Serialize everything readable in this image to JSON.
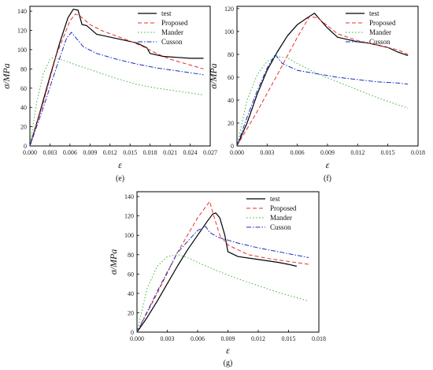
{
  "chart_data": [
    {
      "type": "line",
      "panel_label": "(e)",
      "xlabel": "ε",
      "ylabel": "σ/MPa",
      "xlim": [
        0,
        0.027
      ],
      "ylim": [
        0,
        145
      ],
      "xticks": [
        "0.000",
        "0.003",
        "0.006",
        "0.009",
        "0.012",
        "0.015",
        "0.018",
        "0.021",
        "0.024",
        "0.027"
      ],
      "yticks": [
        "0",
        "20",
        "40",
        "60",
        "80",
        "100",
        "120",
        "140"
      ],
      "legend_position": "top-right",
      "series": [
        {
          "name": "test",
          "color": "#000000",
          "dash": "solid",
          "x": [
            0,
            0.0015,
            0.003,
            0.0045,
            0.0057,
            0.0065,
            0.0072,
            0.0078,
            0.0085,
            0.01,
            0.012,
            0.014,
            0.016,
            0.0175,
            0.018,
            0.02,
            0.022,
            0.024,
            0.026
          ],
          "y": [
            0,
            35,
            72,
            108,
            133,
            142,
            141,
            126,
            125,
            116,
            113,
            110,
            107,
            102,
            96,
            93,
            92,
            91,
            91
          ]
        },
        {
          "name": "Proposed",
          "color": "#e8302a",
          "dash": "dashed",
          "x": [
            0,
            0.002,
            0.004,
            0.006,
            0.0068,
            0.0075,
            0.009,
            0.011,
            0.013,
            0.015,
            0.017,
            0.019,
            0.021,
            0.023,
            0.026
          ],
          "y": [
            0,
            45,
            95,
            130,
            137,
            135,
            126,
            119,
            114,
            109,
            103,
            96,
            90,
            86,
            80
          ]
        },
        {
          "name": "Mander",
          "color": "#3cb43c",
          "dash": "dotted",
          "x": [
            0,
            0.001,
            0.002,
            0.003,
            0.0035,
            0.005,
            0.007,
            0.01,
            0.013,
            0.016,
            0.019,
            0.022,
            0.026
          ],
          "y": [
            0,
            45,
            75,
            90,
            92,
            89,
            84,
            77,
            70,
            64,
            60,
            57,
            53
          ]
        },
        {
          "name": "Cusson",
          "color": "#1a2fbf",
          "dash": "dashdot",
          "x": [
            0,
            0.002,
            0.004,
            0.0055,
            0.0062,
            0.0068,
            0.008,
            0.01,
            0.013,
            0.016,
            0.019,
            0.022,
            0.026
          ],
          "y": [
            0,
            40,
            82,
            112,
            118,
            113,
            103,
            96,
            90,
            85,
            81,
            78,
            74
          ]
        }
      ]
    },
    {
      "type": "line",
      "panel_label": "(f)",
      "xlabel": "ε",
      "ylabel": "σ/MPa",
      "xlim": [
        0,
        0.018
      ],
      "ylim": [
        0,
        122
      ],
      "xticks": [
        "0.000",
        "0.003",
        "0.006",
        "0.009",
        "0.012",
        "0.015",
        "0.018"
      ],
      "yticks": [
        "0",
        "20",
        "40",
        "60",
        "80",
        "100",
        "120"
      ],
      "legend_position": "top-right",
      "series": [
        {
          "name": "test",
          "color": "#000000",
          "dash": "solid",
          "x": [
            0,
            0.001,
            0.002,
            0.003,
            0.004,
            0.005,
            0.006,
            0.007,
            0.0077,
            0.008,
            0.009,
            0.01,
            0.011,
            0.012,
            0.013,
            0.014,
            0.015,
            0.016,
            0.017
          ],
          "y": [
            0,
            20,
            45,
            66,
            82,
            96,
            106,
            112,
            116,
            113,
            103,
            95,
            93,
            91,
            90,
            88,
            86,
            82,
            79
          ]
        },
        {
          "name": "Proposed",
          "color": "#e8302a",
          "dash": "dashed",
          "x": [
            0,
            0.002,
            0.004,
            0.006,
            0.0072,
            0.008,
            0.009,
            0.01,
            0.012,
            0.014,
            0.016,
            0.017
          ],
          "y": [
            0,
            30,
            62,
            95,
            113,
            112,
            105,
            98,
            92,
            88,
            84,
            80
          ]
        },
        {
          "name": "Mander",
          "color": "#3cb43c",
          "dash": "dotted",
          "x": [
            0,
            0.001,
            0.002,
            0.003,
            0.004,
            0.005,
            0.006,
            0.008,
            0.01,
            0.012,
            0.014,
            0.016,
            0.017
          ],
          "y": [
            0,
            40,
            62,
            74,
            78,
            77,
            72,
            63,
            56,
            49,
            42,
            36,
            33
          ]
        },
        {
          "name": "Cusson",
          "color": "#1a2fbf",
          "dash": "dashdot",
          "x": [
            0,
            0.001,
            0.002,
            0.003,
            0.0038,
            0.0045,
            0.006,
            0.008,
            0.01,
            0.012,
            0.014,
            0.016,
            0.017
          ],
          "y": [
            0,
            25,
            48,
            68,
            80,
            72,
            66,
            63,
            60,
            58,
            56,
            55,
            54
          ]
        }
      ]
    },
    {
      "type": "line",
      "panel_label": "(g)",
      "xlabel": "ε",
      "ylabel": "σ/MPa",
      "xlim": [
        0,
        0.018
      ],
      "ylim": [
        0,
        145
      ],
      "xticks": [
        "0.000",
        "0.003",
        "0.006",
        "0.009",
        "0.012",
        "0.015",
        "0.018"
      ],
      "yticks": [
        "0",
        "20",
        "40",
        "60",
        "80",
        "100",
        "120",
        "140"
      ],
      "legend_position": "top-right",
      "series": [
        {
          "name": "test",
          "color": "#000000",
          "dash": "solid",
          "x": [
            0,
            0.001,
            0.002,
            0.003,
            0.004,
            0.005,
            0.006,
            0.007,
            0.0075,
            0.0078,
            0.0082,
            0.0087,
            0.009,
            0.01,
            0.012,
            0.014,
            0.015,
            0.0158
          ],
          "y": [
            0,
            15,
            32,
            50,
            68,
            85,
            100,
            115,
            122,
            123,
            118,
            100,
            83,
            78,
            75,
            72,
            70,
            68
          ]
        },
        {
          "name": "Proposed",
          "color": "#e8302a",
          "dash": "dashed",
          "x": [
            0,
            0.002,
            0.004,
            0.006,
            0.0072,
            0.0076,
            0.0082,
            0.009,
            0.011,
            0.013,
            0.015,
            0.017
          ],
          "y": [
            0,
            40,
            82,
            118,
            135,
            120,
            100,
            90,
            80,
            76,
            73,
            70
          ]
        },
        {
          "name": "Mander",
          "color": "#3cb43c",
          "dash": "dotted",
          "x": [
            0,
            0.001,
            0.002,
            0.003,
            0.004,
            0.005,
            0.006,
            0.008,
            0.01,
            0.012,
            0.014,
            0.016,
            0.017
          ],
          "y": [
            0,
            45,
            68,
            78,
            80,
            77,
            72,
            63,
            55,
            48,
            41,
            35,
            32
          ]
        },
        {
          "name": "Cusson",
          "color": "#1a2fbf",
          "dash": "dashdot",
          "x": [
            0,
            0.002,
            0.004,
            0.006,
            0.0068,
            0.0072,
            0.008,
            0.01,
            0.012,
            0.014,
            0.016,
            0.017
          ],
          "y": [
            0,
            42,
            82,
            105,
            109,
            103,
            98,
            92,
            87,
            83,
            79,
            77
          ]
        }
      ]
    }
  ]
}
